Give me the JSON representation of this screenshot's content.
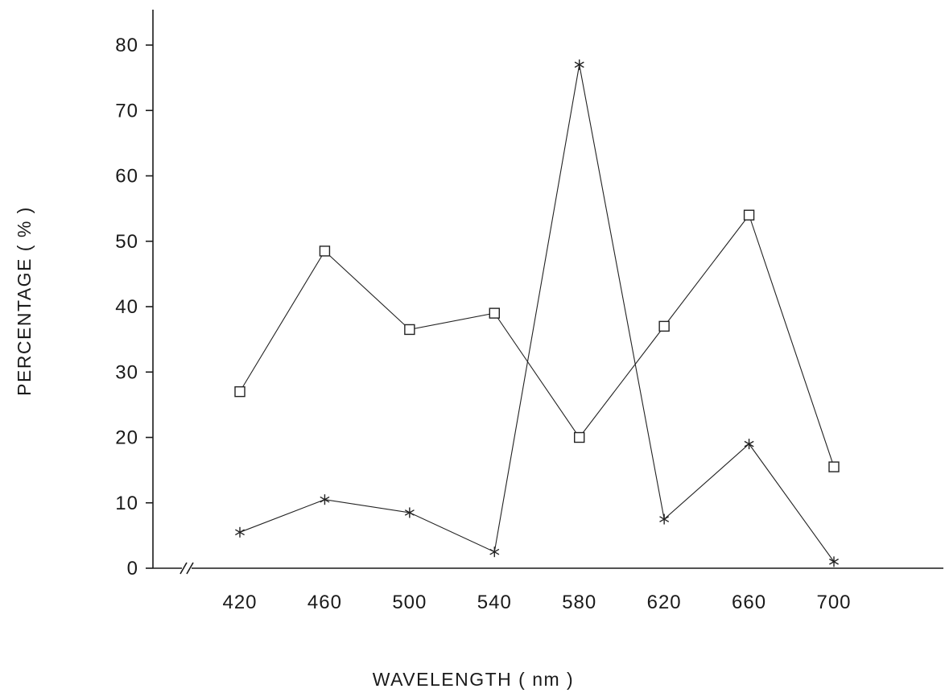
{
  "chart_data": {
    "type": "line",
    "title": "",
    "xlabel": "WAVELENGTH ( nm )",
    "ylabel": "PERCENTAGE ( % )",
    "x": [
      420,
      460,
      500,
      540,
      580,
      620,
      660,
      700
    ],
    "x_tick_labels": [
      "420",
      "460",
      "500",
      "540",
      "580",
      "620",
      "660",
      "700"
    ],
    "y_ticks": [
      0,
      10,
      20,
      30,
      40,
      50,
      60,
      70,
      80
    ],
    "y_tick_labels": [
      "0",
      "10",
      "20",
      "30",
      "40",
      "50",
      "60",
      "70",
      "80"
    ],
    "ylim": [
      0,
      80
    ],
    "x_axis_break": true,
    "grid": false,
    "series": [
      {
        "marker": "square",
        "values": [
          27,
          48.5,
          36.5,
          39,
          20,
          37,
          54,
          15.5
        ]
      },
      {
        "marker": "asterisk",
        "values": [
          5.5,
          10.5,
          8.5,
          2.5,
          77,
          7.5,
          19,
          1
        ]
      }
    ]
  }
}
